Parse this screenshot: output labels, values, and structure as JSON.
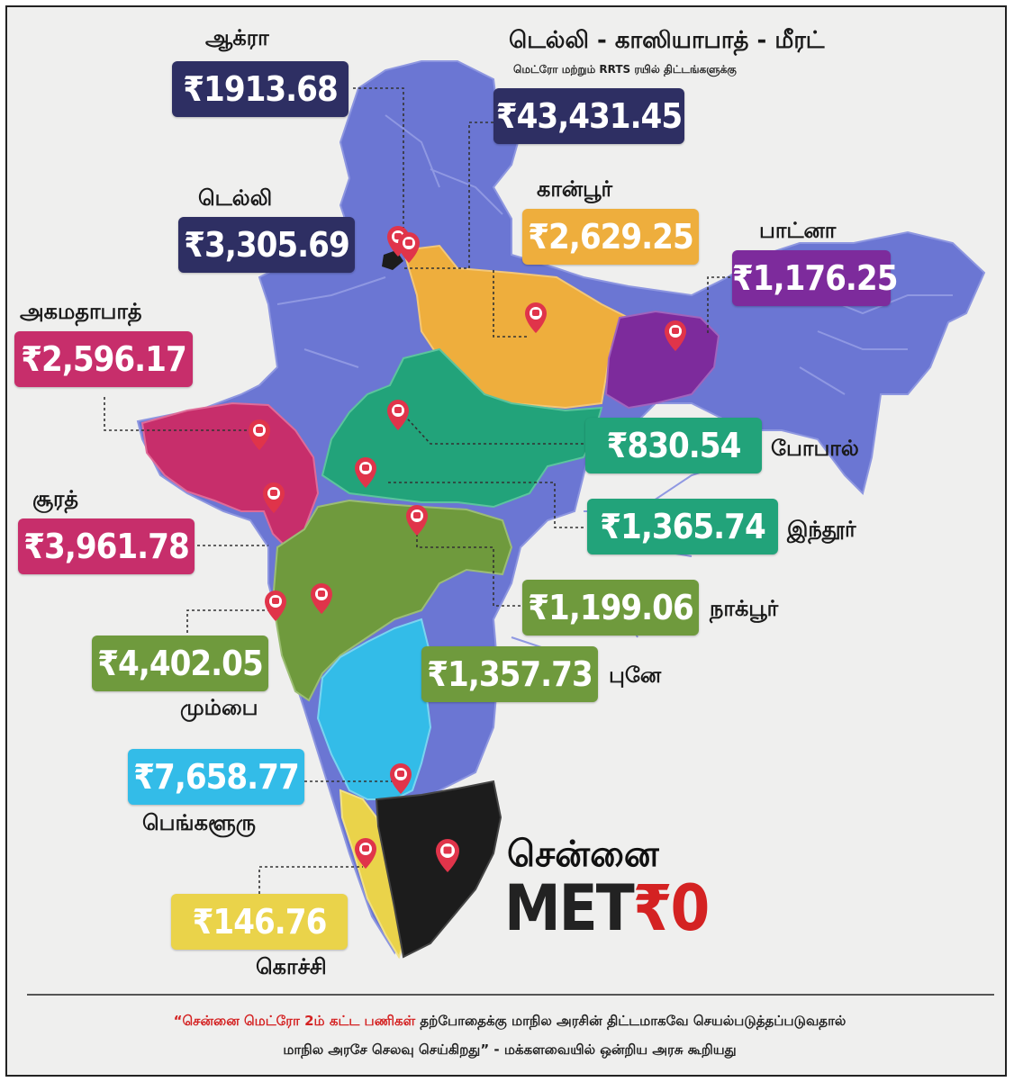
{
  "labels": {
    "agra": {
      "city": "ஆக்ரா",
      "amount": "₹1913.68"
    },
    "delhi_ghaziabad_meerut": {
      "city": "டெல்லி - காஸியாபாத் - மீரட்",
      "subtitle": "மெட்ரோ மற்றும் RRTS ரயில் திட்டங்களுக்கு",
      "amount": "₹43,431.45"
    },
    "delhi": {
      "city": "டெல்லி",
      "amount": "₹3,305.69"
    },
    "kanpur": {
      "city": "கான்பூர்",
      "amount": "₹2,629.25"
    },
    "patna": {
      "city": "பாட்னா",
      "amount": "₹1,176.25"
    },
    "ahmedabad": {
      "city": "அகமதாபாத்",
      "amount": "₹2,596.17"
    },
    "bhopal": {
      "city": "போபால்",
      "amount": "₹830.54"
    },
    "surat": {
      "city": "சூரத்",
      "amount": "₹3,961.78"
    },
    "indore": {
      "city": "இந்தூர்",
      "amount": "₹1,365.74"
    },
    "nagpur": {
      "city": "நாக்பூர்",
      "amount": "₹1,199.06"
    },
    "mumbai": {
      "city": "மும்பை",
      "amount": "₹4,402.05"
    },
    "pune": {
      "city": "புனே",
      "amount": "₹1,357.73"
    },
    "bengaluru": {
      "city": "பெங்களூரு",
      "amount": "₹7,658.77"
    },
    "kochi": {
      "city": "கொச்சி",
      "amount": "₹146.76"
    }
  },
  "chennai": {
    "city": "சென்னை",
    "brand_prefix": "MET",
    "brand_suffix": "₹0"
  },
  "footer": {
    "quote_open": "“",
    "highlight": "சென்னை மெட்ரோ 2ம் கட்ட பணிகள்",
    "line1_rest": " தற்போதைக்கு மாநில அரசின் திட்டமாகவே செயல்படுத்தப்படுவதால்",
    "line2": "மாநில அரசே செலவு செய்கிறது",
    "quote_close": "”",
    "line2_rest": " - மக்களவையில் ஒன்றிய அரசு கூறியது"
  },
  "colors": {
    "navy": "#2e2f63",
    "orange": "#eeae3d",
    "purple": "#7d2b9c",
    "pink": "#c72e6b",
    "teal": "#22a37a",
    "olive": "#6f9a3d",
    "sky": "#33bce8",
    "yellow": "#ead34a",
    "map_blue": "#6b76d3",
    "chennai_black": "#1c1c1c",
    "pin_red": "#e0344a"
  },
  "icons": [
    "metro-pin-icon"
  ]
}
